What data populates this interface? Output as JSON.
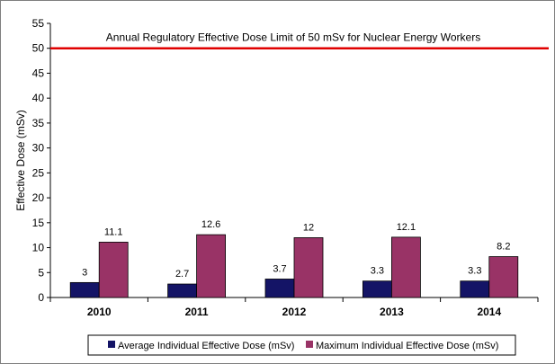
{
  "chart_data": {
    "type": "bar",
    "categories": [
      "2010",
      "2011",
      "2012",
      "2013",
      "2014"
    ],
    "series": [
      {
        "name": "Average Individual Effective Dose (mSv)",
        "values": [
          3,
          2.7,
          3.7,
          3.3,
          3.3
        ],
        "color": "#141466"
      },
      {
        "name": "Maximum Individual Effective Dose (mSv)",
        "values": [
          11.1,
          12.6,
          12,
          12.1,
          8.2
        ],
        "color": "#993366"
      }
    ],
    "ylabel": "Effective Dose (mSv)",
    "xlabel": "",
    "ylim": [
      0,
      55
    ],
    "yticks": [
      0,
      5,
      10,
      15,
      20,
      25,
      30,
      35,
      40,
      45,
      50,
      55
    ],
    "reference_line": {
      "value": 50,
      "label": "Annual  Regulatory Effective Dose Limit of 50 mSv for Nuclear Energy Workers",
      "color": "#e00000"
    },
    "grid": false,
    "legend_position": "bottom"
  }
}
